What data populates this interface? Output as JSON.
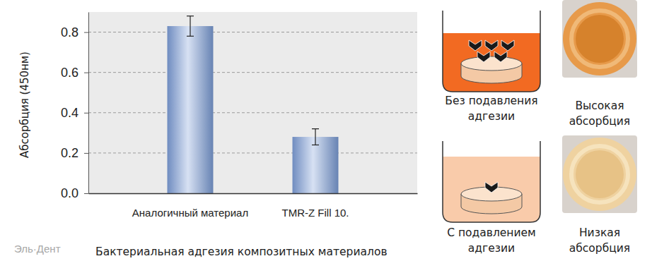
{
  "chart_data": {
    "type": "bar",
    "title": "Бактериальная адгезия композитных материалов",
    "y_label": "Абсорбция (450нм)",
    "watermark": "Эль·Дент",
    "categories": [
      "Аналогичный материал",
      "TMR-Z Fill 10."
    ],
    "values": [
      0.83,
      0.28
    ],
    "errors": [
      0.05,
      0.04
    ],
    "color": "#7b9cd6",
    "ylim": [
      0,
      0.9
    ],
    "yticks": [
      {
        "value": 0,
        "label": "0.0"
      },
      0.2,
      0.4,
      0.6,
      0.8
    ],
    "grid": true,
    "annotations": [
      [
        "Без подавления",
        "адгезии"
      ],
      [
        "Высокая",
        "абсорбция"
      ],
      [
        "С подавлением",
        "адгезии"
      ],
      [
        "Низкая",
        "абсорбция"
      ]
    ]
  }
}
